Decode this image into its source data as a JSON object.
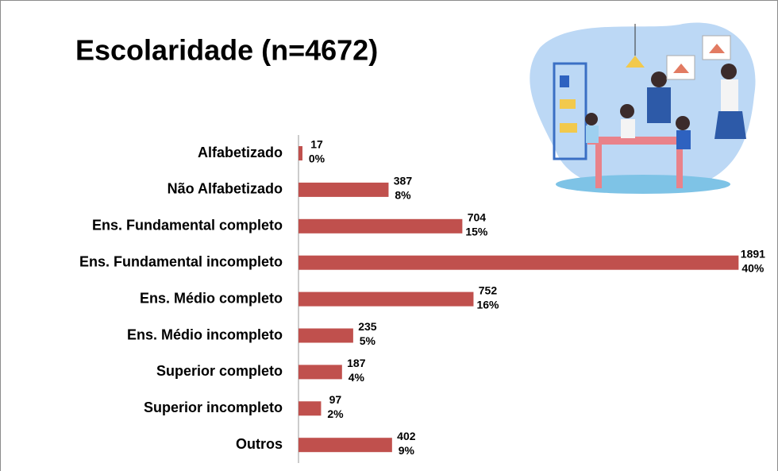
{
  "chart_data": {
    "type": "bar",
    "orientation": "horizontal",
    "title": "Escolaridade (n=4672)",
    "categories": [
      "Alfabetizado",
      "Não Alfabetizado",
      "Ens. Fundamental completo",
      "Ens. Fundamental incompleto",
      "Ens. Médio completo",
      "Ens. Médio incompleto",
      "Superior completo",
      "Superior incompleto",
      "Outros"
    ],
    "values": [
      17,
      387,
      704,
      1891,
      752,
      235,
      187,
      97,
      402
    ],
    "percent_labels": [
      "0%",
      "8%",
      "15%",
      "40%",
      "16%",
      "5%",
      "4%",
      "2%",
      "9%"
    ],
    "color": "#c0504d",
    "xlim": [
      0,
      1900
    ]
  }
}
